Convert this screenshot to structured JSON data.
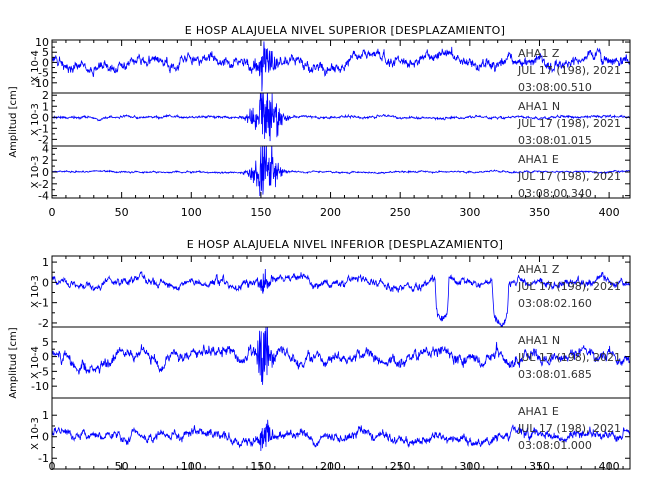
{
  "chart_data": [
    {
      "type": "line",
      "title": "E HOSP ALAJUELA NIVEL SUPERIOR [DESPLAZAMIENTO]",
      "ylabel": "Amplitud [cm]",
      "xlim": [
        0,
        415
      ],
      "xticks": [
        "0",
        "50",
        "100",
        "150",
        "200",
        "250",
        "300",
        "350",
        "400"
      ],
      "xtick_values": [
        0,
        50,
        100,
        150,
        200,
        250,
        300,
        350,
        400
      ],
      "line_color": "#0000ff",
      "panels": [
        {
          "scale_label": "X 10-4",
          "ylim": [
            -15,
            11
          ],
          "yticks": [
            "10",
            "5",
            "0",
            "-5",
            "-10"
          ],
          "ytick_values": [
            10,
            5,
            0,
            -5,
            -10
          ],
          "annotation": [
            "AHA1   Z",
            "JUL 17 (198), 2021",
            "03:08:00.510"
          ],
          "series": {
            "kind": "broadband",
            "amplitude": 6.0,
            "burst_center": 152,
            "burst_width": 8,
            "burst_gain": 1.0,
            "seed": 11
          }
        },
        {
          "scale_label": "X 10-3",
          "ylim": [
            -2.6,
            2.2
          ],
          "yticks": [
            "2",
            "1",
            "0",
            "-1",
            "-2"
          ],
          "ytick_values": [
            2,
            1,
            0,
            -1,
            -2
          ],
          "annotation": [
            "AHA1   N",
            "JUL 17 (198), 2021",
            "03:08:01.015"
          ],
          "series": {
            "kind": "burst",
            "amplitude": 0.35,
            "burst_center": 153,
            "burst_width": 10,
            "burst_gain": 5.5,
            "seed": 23
          }
        },
        {
          "scale_label": "X 10-3",
          "ylim": [
            -4.4,
            4.4
          ],
          "yticks": [
            "4",
            "2",
            "0",
            "-2",
            "-4"
          ],
          "ytick_values": [
            4,
            2,
            0,
            -2,
            -4
          ],
          "annotation": [
            "AHA1   E",
            "JUL 17 (198), 2021",
            "03:08:00.340"
          ],
          "series": {
            "kind": "burst",
            "amplitude": 0.45,
            "burst_center": 152,
            "burst_width": 9,
            "burst_gain": 7.5,
            "seed": 37
          }
        }
      ]
    },
    {
      "type": "line",
      "title": "E HOSP ALAJUELA NIVEL INFERIOR [DESPLAZAMIENTO]",
      "ylabel": "Amplitud [cm]",
      "xlim": [
        0,
        415
      ],
      "xticks": [
        "0",
        "50",
        "100",
        "150",
        "200",
        "250",
        "300",
        "350",
        "400"
      ],
      "xtick_values": [
        0,
        50,
        100,
        150,
        200,
        250,
        300,
        350,
        400
      ],
      "line_color": "#0000ff",
      "panels": [
        {
          "scale_label": "X 10-3",
          "ylim": [
            -2.2,
            1.3
          ],
          "yticks": [
            "1",
            "0",
            "-1",
            "-2"
          ],
          "ytick_values": [
            1,
            0,
            -1,
            -2
          ],
          "annotation": [
            "AHA1   Z",
            "JUL 17 (198), 2021",
            "03:08:02.160"
          ],
          "series": {
            "kind": "broadband",
            "amplitude": 0.45,
            "burst_center": 152,
            "burst_width": 6,
            "burst_gain": 0.8,
            "seed": 53,
            "dips": [
              [
                280,
                5,
                -2.0
              ],
              [
                322,
                6,
                -1.9
              ]
            ]
          }
        },
        {
          "scale_label": "X 10-4",
          "ylim": [
            -14,
            10
          ],
          "yticks": [
            "5",
            "0",
            "-5",
            "-10"
          ],
          "ytick_values": [
            5,
            0,
            -5,
            -10
          ],
          "annotation": [
            "AHA1   N",
            "JUL 17 (198), 2021",
            "03:08:01.685"
          ],
          "series": {
            "kind": "broadband",
            "amplitude": 4.5,
            "burst_center": 151,
            "burst_width": 7,
            "burst_gain": 1.6,
            "seed": 71
          }
        },
        {
          "scale_label": "X 10-3",
          "ylim": [
            -1.5,
            1.8
          ],
          "yticks": [
            "1",
            "0",
            "-1"
          ],
          "ytick_values": [
            1,
            0,
            -1
          ],
          "annotation": [
            "AHA1   E",
            "JUL 17 (198), 2021",
            "03:08:01.000"
          ],
          "series": {
            "kind": "broadband",
            "amplitude": 0.5,
            "burst_center": 152,
            "burst_width": 6,
            "burst_gain": 0.9,
            "seed": 97
          }
        }
      ]
    }
  ]
}
